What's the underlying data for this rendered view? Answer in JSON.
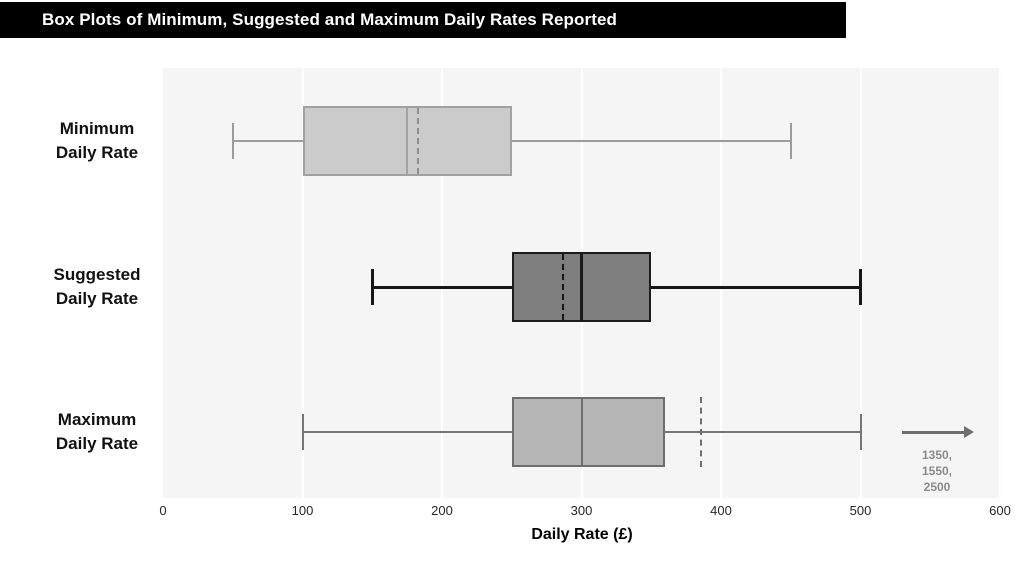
{
  "title_bar": {
    "title": "Box Plots of Minimum, Suggested and Maximum Daily Rates Reported"
  },
  "chart_data": {
    "type": "boxplot",
    "orientation": "horizontal",
    "title": "Box Plots of Minimum, Suggested and Maximum Daily Rates Reported",
    "xlabel": "Daily Rate (£)",
    "xlim": [
      0,
      600
    ],
    "xticks": [
      0,
      100,
      200,
      300,
      400,
      500,
      600
    ],
    "grid": true,
    "series": [
      {
        "name": "Minimum Daily Rate",
        "label_lines": [
          "Minimum",
          "Daily Rate"
        ],
        "whisker_low": 50,
        "q1": 100,
        "median": 175,
        "mean": 183,
        "q3": 250,
        "whisker_high": 450,
        "colors": {
          "fill": "#cbcbcb",
          "border": "#a1a1a1",
          "line": "#9b9b9b",
          "mean": "#8f8f8f"
        }
      },
      {
        "name": "Suggested Daily Rate",
        "label_lines": [
          "Suggested",
          "Daily Rate"
        ],
        "whisker_low": 150,
        "q1": 250,
        "median": 300,
        "mean": 287,
        "q3": 350,
        "whisker_high": 500,
        "colors": {
          "fill": "#7e7e7e",
          "border": "#1c1c1c",
          "line": "#161616",
          "mean": "#161616"
        }
      },
      {
        "name": "Maximum Daily Rate",
        "label_lines": [
          "Maximum",
          "Daily Rate"
        ],
        "whisker_low": 100,
        "q1": 250,
        "median": 300,
        "mean": 386,
        "q3": 360,
        "whisker_high": 500,
        "mean_outside_box": true,
        "outliers_note": {
          "arrow": true,
          "lines": [
            "1350,",
            "1550,",
            "2500"
          ]
        },
        "colors": {
          "fill": "#b5b5b5",
          "border": "#6d6d6d",
          "line": "#757575",
          "mean": "#6f6f6f",
          "arrow": "#6f6f6f",
          "note_text": "#8a8a8a"
        }
      }
    ]
  },
  "colors": {
    "title_bar_bg": "#000000",
    "title_text": "#ffffff",
    "page_bg": "#ffffff",
    "plot_bg": "#f5f5f5",
    "gridline": "#fdfdfd",
    "tick_text": "#262626",
    "axis_title_text": "#000000"
  }
}
